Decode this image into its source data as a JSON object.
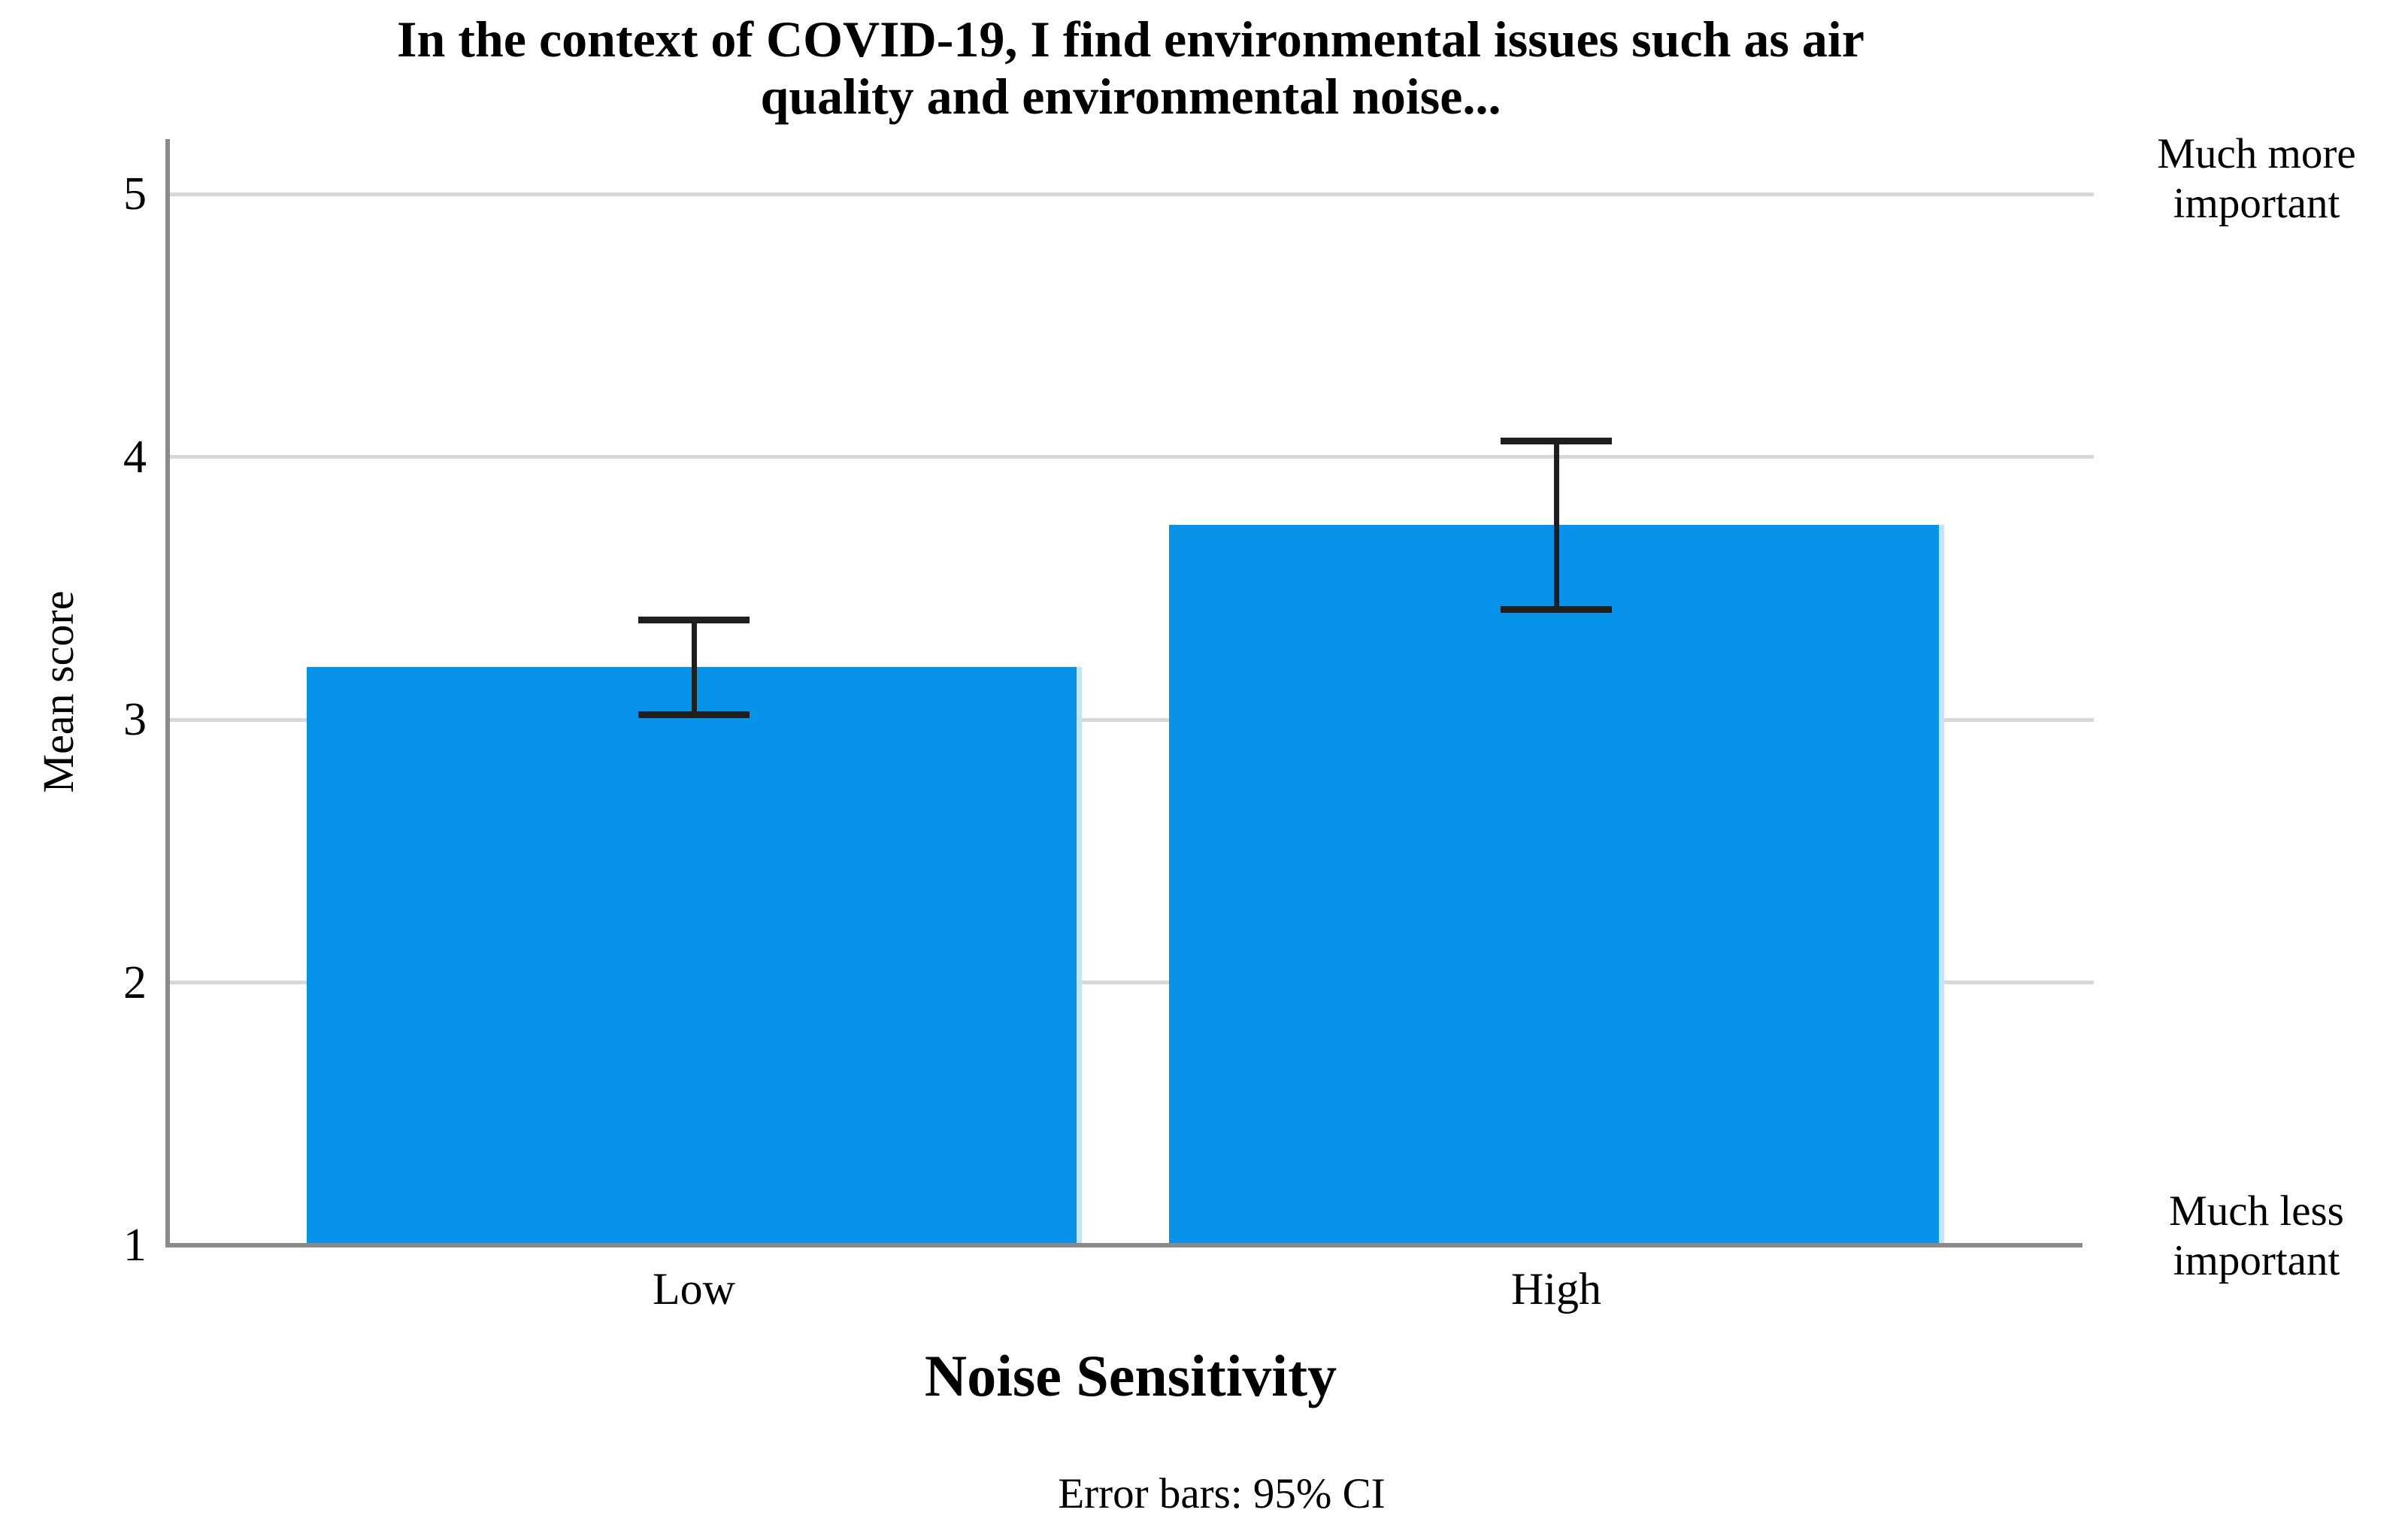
{
  "figure": {
    "title_lines": [
      "In the context of COVID-19, I find environmental issues such as air",
      "quality and environmental noise..."
    ],
    "right_annotation_top_lines": [
      "Much more",
      "important"
    ],
    "right_annotation_bottom_lines": [
      "Much less",
      "important"
    ]
  },
  "chart_data": {
    "type": "bar",
    "title": "In the context of COVID-19, I find environmental issues such as air quality and environmental noise...",
    "xlabel": "Noise Sensitivity",
    "ylabel": "Mean score",
    "categories": [
      "Low",
      "High"
    ],
    "values": [
      3.2,
      3.74
    ],
    "ci_95": [
      [
        3.02,
        3.38
      ],
      [
        3.42,
        4.06
      ]
    ],
    "yticks": [
      "5",
      "4",
      "3",
      "2",
      "1"
    ],
    "ytick_values": [
      5,
      4,
      3,
      2,
      1
    ],
    "ylim": [
      1,
      5.21
    ],
    "grid": "horizontal",
    "legend": "none",
    "footnote": "Error bars: 95% CI",
    "right_axis_label_top": "Much more important",
    "right_axis_label_bottom": "Much less important",
    "bar_color": "#0793E9",
    "bar_edge_color": "#BEE5FA",
    "gridline_color": "#D8D8D8",
    "axis_color": "#8A8A8A",
    "error_bar_color": "#1F1F1F"
  }
}
